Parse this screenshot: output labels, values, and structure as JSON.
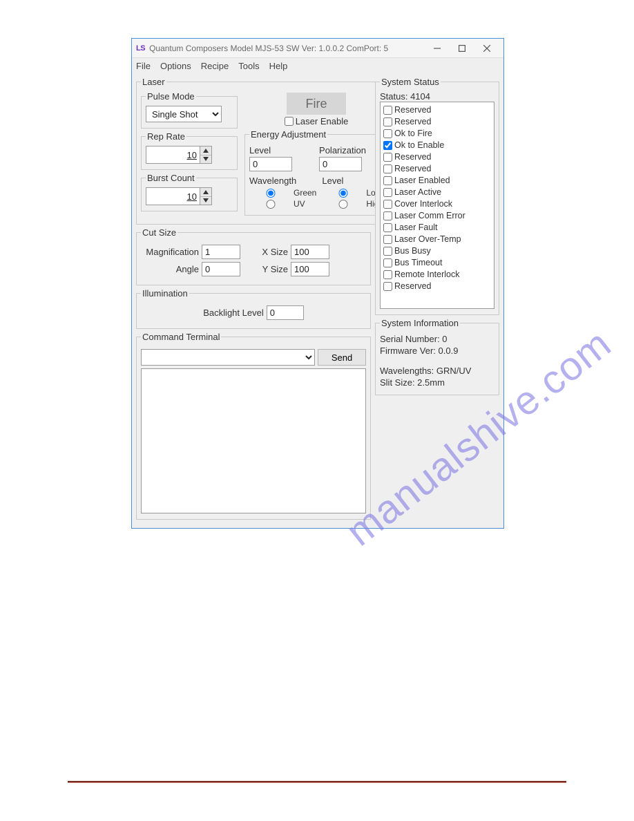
{
  "window": {
    "title": "Quantum Composers Model MJS-53  SW Ver: 1.0.0.2 ComPort: 5",
    "logo": "LS"
  },
  "menu": {
    "file": "File",
    "options": "Options",
    "recipe": "Recipe",
    "tools": "Tools",
    "help": "Help"
  },
  "laser": {
    "legend": "Laser",
    "pulse_mode": {
      "legend": "Pulse Mode",
      "value": "Single Shot"
    },
    "rep_rate": {
      "legend": "Rep Rate",
      "value": "10"
    },
    "burst_count": {
      "legend": "Burst Count",
      "value": "10"
    },
    "fire_label": "Fire",
    "laser_enable_label": "Laser Enable",
    "energy": {
      "legend": "Energy Adjustment",
      "level_label": "Level",
      "level_value": "0",
      "polarization_label": "Polarization",
      "polarization_value": "0",
      "wavelength_label": "Wavelength",
      "wavelength_green": "Green",
      "wavelength_uv": "UV",
      "level2_label": "Level",
      "level2_low": "Low",
      "level2_high": "High"
    }
  },
  "cut": {
    "legend": "Cut Size",
    "mag_label": "Magnification",
    "mag_value": "1",
    "angle_label": "Angle",
    "angle_value": "0",
    "xsize_label": "X Size",
    "xsize_value": "100",
    "ysize_label": "Y Size",
    "ysize_value": "100"
  },
  "illum": {
    "legend": "Illumination",
    "backlight_label": "Backlight Level",
    "backlight_value": "0"
  },
  "term": {
    "legend": "Command Terminal",
    "send_label": "Send"
  },
  "status": {
    "legend": "System Status",
    "status_label": "Status: 4104",
    "items": [
      {
        "label": "Reserved",
        "checked": false
      },
      {
        "label": "Reserved",
        "checked": false
      },
      {
        "label": "Ok to Fire",
        "checked": false
      },
      {
        "label": "Ok to Enable",
        "checked": true
      },
      {
        "label": "Reserved",
        "checked": false
      },
      {
        "label": "Reserved",
        "checked": false
      },
      {
        "label": "Laser Enabled",
        "checked": false
      },
      {
        "label": "Laser Active",
        "checked": false
      },
      {
        "label": "Cover Interlock",
        "checked": false
      },
      {
        "label": "Laser Comm Error",
        "checked": false
      },
      {
        "label": "Laser Fault",
        "checked": false
      },
      {
        "label": "Laser Over-Temp",
        "checked": false
      },
      {
        "label": "Bus Busy",
        "checked": false
      },
      {
        "label": "Bus Timeout",
        "checked": false
      },
      {
        "label": "Remote Interlock",
        "checked": false
      },
      {
        "label": "Reserved",
        "checked": false
      }
    ]
  },
  "sysinfo": {
    "legend": "System Information",
    "serial": "Serial Number: 0",
    "firmware": "Firmware Ver: 0.0.9",
    "wavelengths": "Wavelengths: GRN/UV",
    "slit": "Slit Size: 2.5mm"
  },
  "watermark": "manualshive.com"
}
